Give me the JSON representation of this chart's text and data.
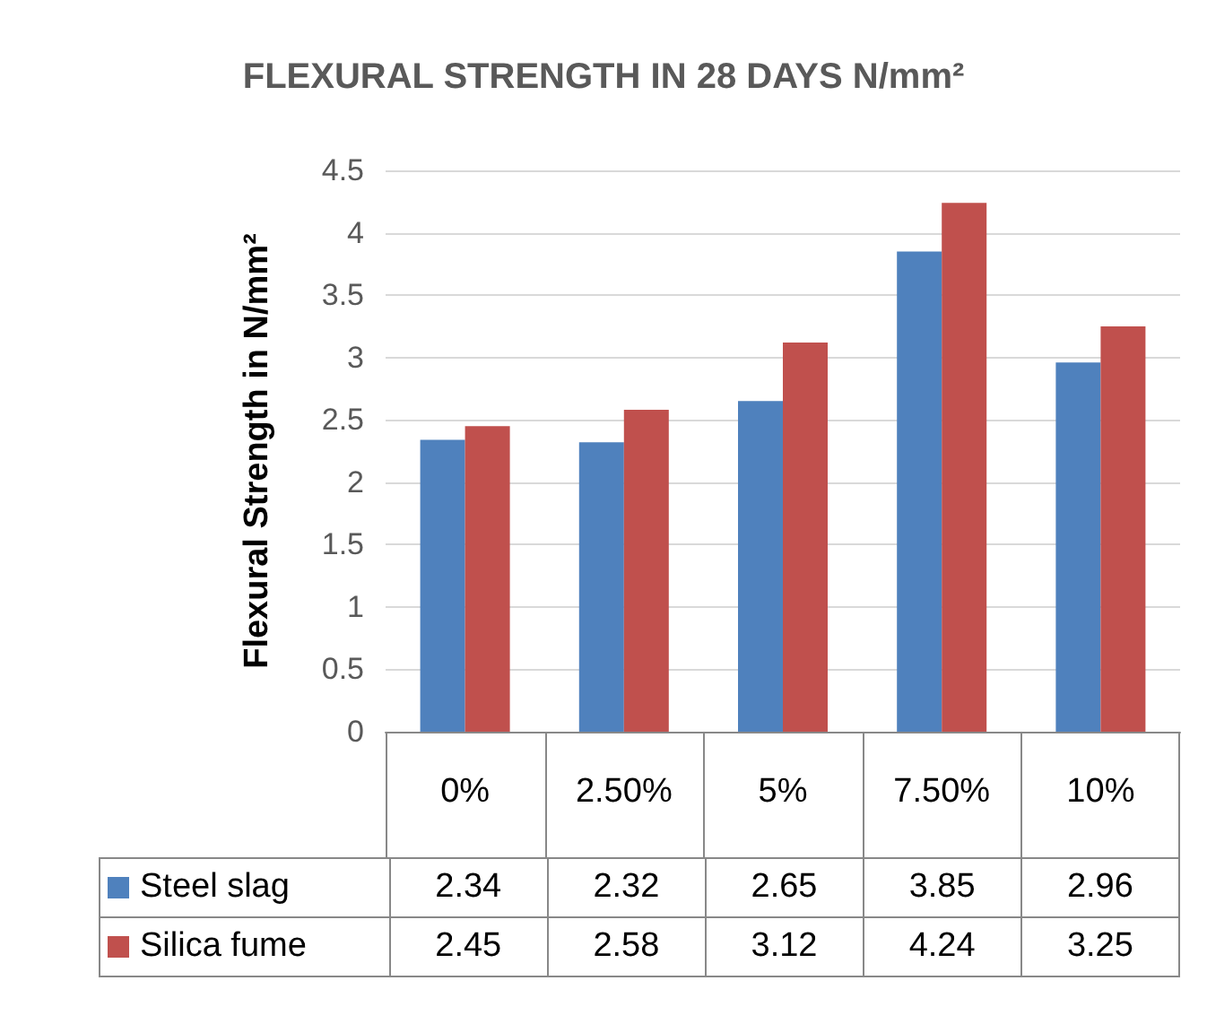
{
  "chart_data": {
    "type": "bar",
    "title": "FLEXURAL STRENGTH IN 28 DAYS N/mm²",
    "ylabel": "Flexural Strength in N/mm²",
    "categories": [
      "0%",
      "2.50%",
      "5%",
      "7.50%",
      "10%"
    ],
    "series": [
      {
        "name": "Steel slag",
        "color": "#4f81bd",
        "values": [
          2.34,
          2.32,
          2.65,
          3.85,
          2.96
        ]
      },
      {
        "name": "Silica fume",
        "color": "#c0504d",
        "values": [
          2.45,
          2.58,
          3.12,
          4.24,
          3.25
        ]
      }
    ],
    "ylim": [
      0,
      4.5
    ],
    "yticks": [
      0,
      0.5,
      1,
      1.5,
      2,
      2.5,
      3,
      3.5,
      4,
      4.5
    ],
    "grid": "y",
    "legend": "bottom",
    "data_labels": true
  }
}
